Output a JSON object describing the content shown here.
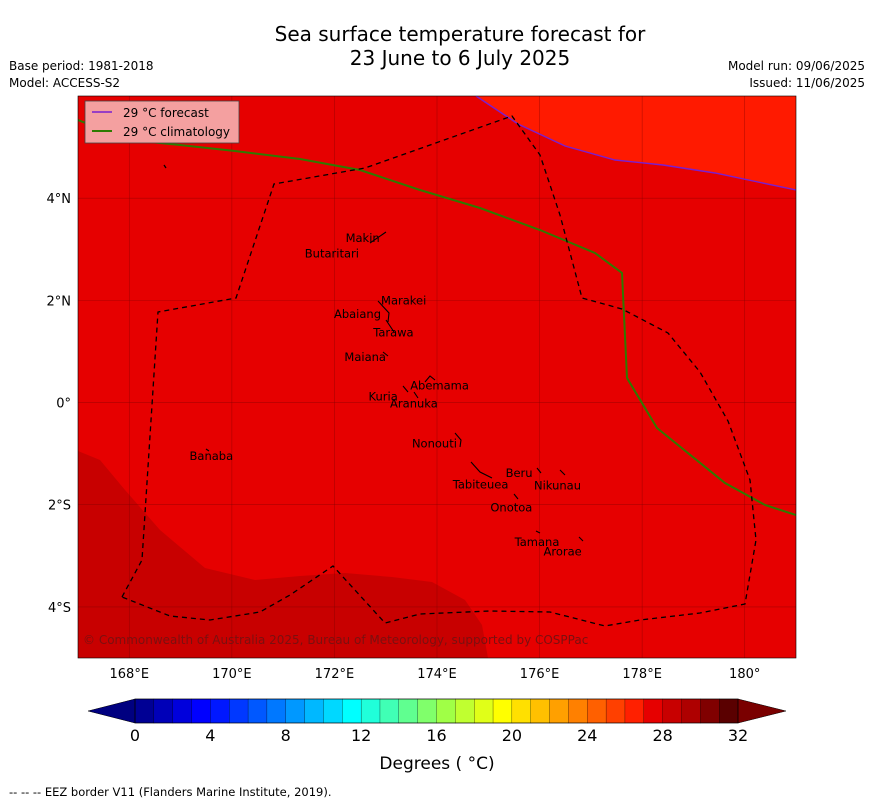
{
  "title": {
    "line1": "Sea surface temperature forecast for",
    "line2": "23 June to 6 July 2025"
  },
  "meta_left": {
    "base_period": "Base period: 1981-2018",
    "model": "Model: ACCESS-S2"
  },
  "meta_right": {
    "model_run": "Model run: 09/06/2025",
    "issued": "Issued: 11/06/2025"
  },
  "legend": {
    "forecast": "29 °C  forecast",
    "climatology": "29 °C  climatology"
  },
  "map": {
    "lon_range": [
      167,
      181
    ],
    "lat_range": [
      -5,
      6
    ],
    "lon_ticks": [
      {
        "value": 168,
        "label": "168°E"
      },
      {
        "value": 170,
        "label": "170°E"
      },
      {
        "value": 172,
        "label": "172°E"
      },
      {
        "value": 174,
        "label": "174°E"
      },
      {
        "value": 176,
        "label": "176°E"
      },
      {
        "value": 178,
        "label": "178°E"
      },
      {
        "value": 180,
        "label": "180°"
      }
    ],
    "lat_ticks": [
      {
        "value": 4,
        "label": "4°N"
      },
      {
        "value": 2,
        "label": "2°N"
      },
      {
        "value": 0,
        "label": "0°"
      },
      {
        "value": -2,
        "label": "2°S"
      },
      {
        "value": -4,
        "label": "4°S"
      }
    ],
    "colors": {
      "background": "#e60000",
      "warm": "#ff1a00",
      "cool": "#c80000",
      "forecast_line": "#7a1fd0",
      "climatology_line": "#2f7a00",
      "eez": "#000000"
    },
    "islands": [
      {
        "name": "Makin",
        "lon": 172.55,
        "lat": 3.22
      },
      {
        "name": "Butaritari",
        "lon": 171.95,
        "lat": 2.92
      },
      {
        "name": "Marakei",
        "lon": 173.35,
        "lat": 2.0
      },
      {
        "name": "Abaiang",
        "lon": 172.45,
        "lat": 1.73
      },
      {
        "name": "Tarawa",
        "lon": 173.15,
        "lat": 1.37
      },
      {
        "name": "Maiana",
        "lon": 172.6,
        "lat": 0.89
      },
      {
        "name": "Abemama",
        "lon": 174.05,
        "lat": 0.33
      },
      {
        "name": "Kuria",
        "lon": 172.95,
        "lat": 0.12
      },
      {
        "name": "Aranuka",
        "lon": 173.55,
        "lat": -0.02
      },
      {
        "name": "Nonouti",
        "lon": 173.95,
        "lat": -0.8
      },
      {
        "name": "Banaba",
        "lon": 169.6,
        "lat": -1.05
      },
      {
        "name": "Beru",
        "lon": 175.6,
        "lat": -1.38
      },
      {
        "name": "Tabiteuea",
        "lon": 174.85,
        "lat": -1.6
      },
      {
        "name": "Nikunau",
        "lon": 176.35,
        "lat": -1.62
      },
      {
        "name": "Onotoa",
        "lon": 175.45,
        "lat": -2.05
      },
      {
        "name": "Tamana",
        "lon": 175.95,
        "lat": -2.73
      },
      {
        "name": "Arorae",
        "lon": 176.45,
        "lat": -2.92
      }
    ],
    "copyright": "© Commonwealth of Australia 2025, Bureau of Meteorology, supported by COSPPac"
  },
  "chart_data": {
    "type": "heatmap",
    "colorbar": {
      "min": 0,
      "max": 32,
      "step": 1,
      "tick_values": [
        0,
        4,
        8,
        12,
        16,
        20,
        24,
        28,
        32
      ],
      "tick_labels": [
        "0",
        "4",
        "8",
        "12",
        "16",
        "20",
        "24",
        "28",
        "32"
      ],
      "label": "Degrees ( °C)",
      "colors": [
        "#000094",
        "#0000b8",
        "#0000dc",
        "#0000ff",
        "#0018ff",
        "#0038ff",
        "#0058ff",
        "#0078ff",
        "#0098ff",
        "#00b8ff",
        "#00d8ff",
        "#00ffff",
        "#20ffda",
        "#40ffb5",
        "#60ff90",
        "#80ff6b",
        "#a0ff46",
        "#c0ff30",
        "#e0ff18",
        "#ffff00",
        "#ffe000",
        "#ffc000",
        "#ffa000",
        "#ff8000",
        "#ff6000",
        "#ff4000",
        "#ff2000",
        "#e60000",
        "#c80000",
        "#ae0000",
        "#800000",
        "#5a0000"
      ],
      "under_color": "#000080",
      "over_color": "#7a0000"
    }
  },
  "footer": {
    "eez_note": "--  --  -- EEZ border V11 (Flanders Marine Institute, 2019)."
  }
}
